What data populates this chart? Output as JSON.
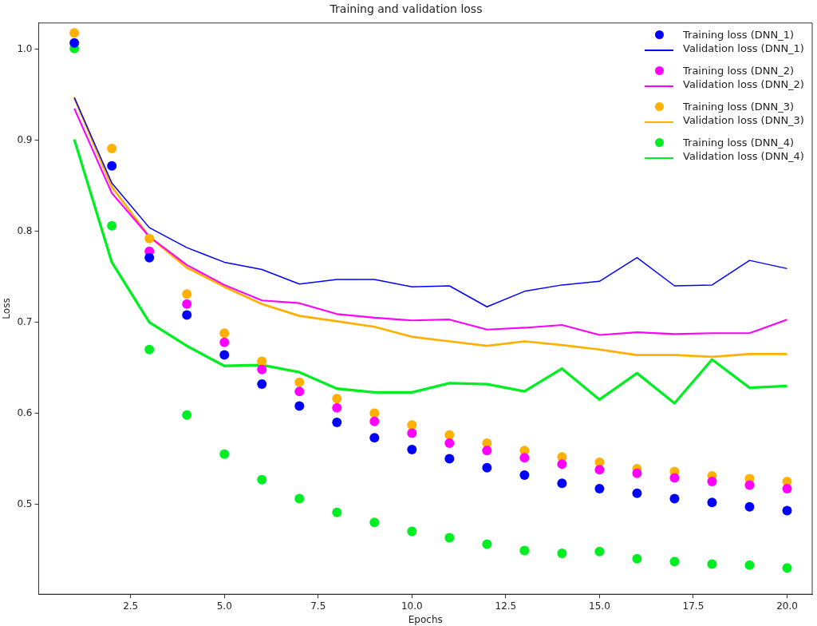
{
  "chart_data": {
    "type": "line",
    "title": "Training and validation loss",
    "xlabel": "Epochs",
    "ylabel": "Loss",
    "x": [
      1,
      2,
      3,
      4,
      5,
      6,
      7,
      8,
      9,
      10,
      11,
      12,
      13,
      14,
      15,
      16,
      17,
      18,
      19,
      20
    ],
    "xlim": [
      0.05,
      20.67
    ],
    "xticks": [
      2.5,
      {
        "value": 5,
        "label": "5.0"
      },
      7.5,
      {
        "value": 10,
        "label": "10.0"
      },
      12.5,
      {
        "value": 15,
        "label": "15.0"
      },
      17.5,
      {
        "value": 20,
        "label": "20.0"
      }
    ],
    "ylim": [
      0.401,
      1.029
    ],
    "yticks": [
      0.5,
      0.6,
      0.7,
      0.8,
      0.9,
      {
        "value": 1,
        "label": "1.0"
      }
    ],
    "grid": false,
    "legend": "top right",
    "series": [
      {
        "type": "scatter",
        "marker": "circle",
        "name": "Training loss (DNN_1)",
        "color": "#0000ff",
        "values": [
          1.007,
          0.872,
          0.771,
          0.708,
          0.664,
          0.632,
          0.608,
          0.59,
          0.573,
          0.56,
          0.55,
          0.54,
          0.532,
          0.523,
          0.517,
          0.512,
          0.506,
          0.502,
          0.497,
          0.493
        ]
      },
      {
        "type": "line",
        "name": "Validation loss (DNN_1)",
        "color": "#0000ff",
        "values": [
          0.947,
          0.853,
          0.804,
          0.782,
          0.766,
          0.758,
          0.742,
          0.747,
          0.747,
          0.739,
          0.74,
          0.717,
          0.734,
          0.741,
          0.745,
          0.771,
          0.74,
          0.741,
          0.768,
          0.759
        ]
      },
      {
        "type": "scatter",
        "marker": "circle",
        "name": "Training loss (DNN_2)",
        "color": "#ff00ff",
        "values": [
          null,
          null,
          0.778,
          0.72,
          0.678,
          0.648,
          0.624,
          0.606,
          0.591,
          0.578,
          0.567,
          0.559,
          0.551,
          0.544,
          0.538,
          0.534,
          0.529,
          0.525,
          0.521,
          0.517
        ]
      },
      {
        "type": "line",
        "name": "Validation loss (DNN_2)",
        "color": "#ff00ff",
        "values": [
          0.935,
          0.842,
          0.794,
          0.763,
          0.741,
          0.724,
          0.721,
          0.709,
          0.705,
          0.702,
          0.703,
          0.692,
          0.694,
          0.697,
          0.686,
          0.689,
          0.687,
          0.688,
          0.688,
          0.703
        ]
      },
      {
        "type": "scatter",
        "marker": "circle",
        "name": "Training loss (DNN_3)",
        "color": "#ffb000",
        "values": [
          1.018,
          0.891,
          0.792,
          0.731,
          0.688,
          0.657,
          0.634,
          0.616,
          0.6,
          0.587,
          0.576,
          0.567,
          0.559,
          0.552,
          0.546,
          0.539,
          0.536,
          0.531,
          0.528,
          0.525
        ]
      },
      {
        "type": "line",
        "name": "Validation loss (DNN_3)",
        "color": "#ffb000",
        "values": [
          0.947,
          0.849,
          0.794,
          0.76,
          0.739,
          0.72,
          0.707,
          0.701,
          0.695,
          0.684,
          0.679,
          0.674,
          0.679,
          0.675,
          0.67,
          0.664,
          0.664,
          0.662,
          0.665,
          0.665
        ]
      },
      {
        "type": "scatter",
        "marker": "circle",
        "name": "Training loss (DNN_4)",
        "color": "#00ee22",
        "values": [
          1.001,
          0.806,
          0.67,
          0.598,
          0.555,
          0.527,
          0.506,
          0.491,
          0.48,
          0.47,
          0.463,
          0.456,
          0.449,
          0.446,
          0.448,
          0.44,
          0.437,
          0.434,
          0.433,
          0.43
        ]
      },
      {
        "type": "line",
        "name": "Validation loss (DNN_4)",
        "color": "#00ee22",
        "values": [
          0.901,
          0.766,
          0.7,
          0.674,
          0.652,
          0.653,
          0.645,
          0.627,
          0.623,
          0.623,
          0.633,
          0.632,
          0.624,
          0.649,
          0.615,
          0.644,
          0.611,
          0.659,
          0.628,
          0.63
        ]
      }
    ]
  }
}
